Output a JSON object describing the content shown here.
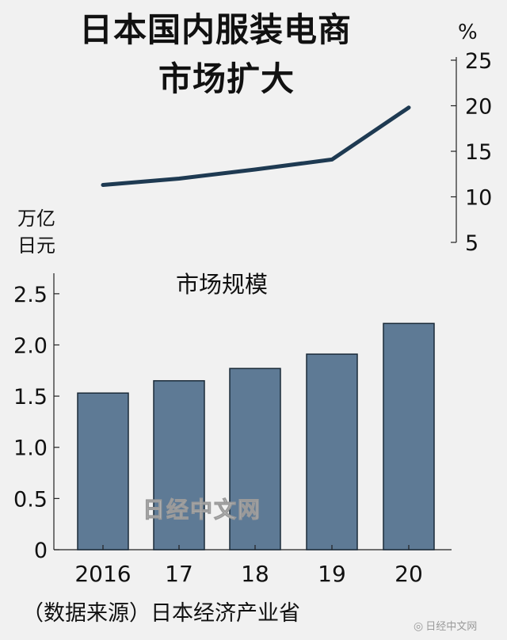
{
  "chart_data": [
    {
      "type": "line",
      "title_lines": [
        "日本国内服装电商",
        "市场扩大"
      ],
      "y_unit": "%",
      "ylim": [
        5,
        25
      ],
      "y_ticks": [
        "5",
        "10",
        "15",
        "20",
        "25"
      ],
      "y_axis_side": "right",
      "x": [
        "2016",
        "17",
        "18",
        "19",
        "20"
      ],
      "values": [
        11.3,
        12.0,
        13.0,
        14.1,
        19.8
      ],
      "line_color": "#1e3a52"
    },
    {
      "type": "bar",
      "subtitle": "市场规模",
      "y_unit_lines": [
        "万亿",
        "日元"
      ],
      "categories": [
        "2016",
        "17",
        "18",
        "19",
        "20"
      ],
      "values": [
        1.53,
        1.65,
        1.77,
        1.91,
        2.21
      ],
      "ylim": [
        0,
        2.7
      ],
      "y_ticks": [
        "0",
        "0.5",
        "1.0",
        "1.5",
        "2.0",
        "2.5"
      ],
      "bar_color": "#5e7a95",
      "bar_edge_color": "#1a2a38"
    }
  ],
  "source": "（数据来源）日本经济产业省",
  "watermark": "日经中文网",
  "corner_mark": "日经中文网"
}
